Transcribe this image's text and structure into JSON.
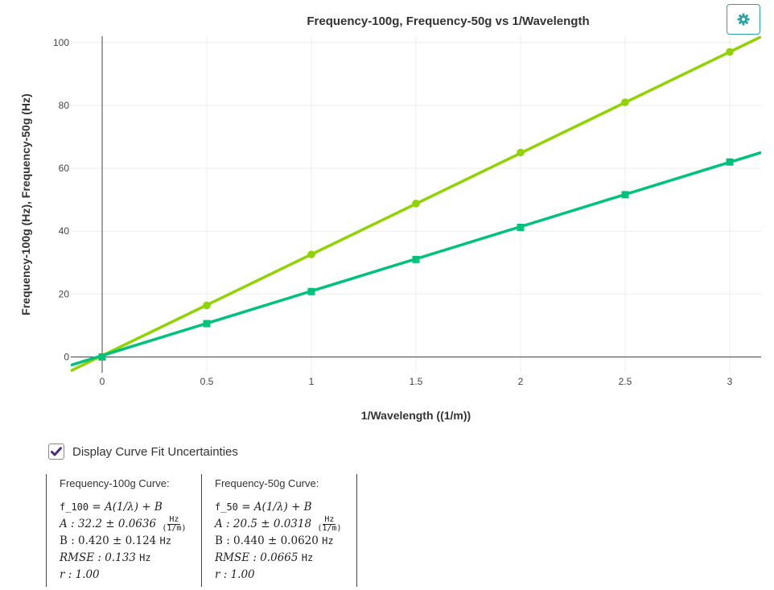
{
  "chart_data": {
    "type": "line",
    "title": "Frequency-100g, Frequency-50g vs 1/Wavelength",
    "xlabel": "1/Wavelength ((1/m))",
    "ylabel": "Frequency-100g (Hz), Frequency-50g (Hz)",
    "xlim": [
      -0.15,
      3.15
    ],
    "ylim": [
      -5,
      102
    ],
    "x_ticks": [
      "0",
      "0.5",
      "1",
      "1.5",
      "2",
      "2.5",
      "3"
    ],
    "y_ticks": [
      "0",
      "20",
      "40",
      "60",
      "80",
      "100"
    ],
    "x_tick_values": [
      0,
      0.5,
      1,
      1.5,
      2,
      2.5,
      3
    ],
    "y_tick_values": [
      0,
      20,
      40,
      60,
      80,
      100
    ],
    "grid": true,
    "series": [
      {
        "name": "Frequency-100g",
        "color": "#8fd400",
        "marker": "circle",
        "x": [
          0,
          0.5,
          1,
          1.5,
          2,
          2.5,
          3
        ],
        "values": [
          0,
          16.4,
          32.6,
          48.8,
          65.0,
          81.0,
          97.0
        ],
        "fit": {
          "A": 32.2,
          "B": 0.42
        }
      },
      {
        "name": "Frequency-50g",
        "color": "#00c27c",
        "marker": "square",
        "x": [
          0,
          0.5,
          1,
          1.5,
          2,
          2.5,
          3
        ],
        "values": [
          0,
          10.6,
          20.8,
          31.0,
          41.2,
          51.6,
          62.0
        ],
        "fit": {
          "A": 20.5,
          "B": 0.44
        }
      }
    ]
  },
  "settings_icon": "gear-icon",
  "fit_toggle": {
    "label": "Display Curve Fit Uncertainties",
    "checked": true
  },
  "fits": [
    {
      "header": "Frequency-100g Curve:",
      "eq_var": "f_100",
      "eq_rest": "= A(1/λ) + B",
      "a_text": "A : 32.2 ± 0.0636",
      "a_unit_num": "Hz",
      "a_unit_den": "(1/m)",
      "b_text": "B : 0.420 ± 0.124",
      "b_unit": "Hz",
      "rmse_text": "RMSE : 0.133",
      "rmse_unit": "Hz",
      "r_text": "r : 1.00"
    },
    {
      "header": "Frequency-50g Curve:",
      "eq_var": "f_50",
      "eq_rest": "= A(1/λ) + B",
      "a_text": "A : 20.5 ± 0.0318",
      "a_unit_num": "Hz",
      "a_unit_den": "(1/m)",
      "b_text": "B : 0.440 ± 0.0620",
      "b_unit": "Hz",
      "rmse_text": "RMSE : 0.0665",
      "rmse_unit": "Hz",
      "r_text": "r : 1.00"
    }
  ]
}
